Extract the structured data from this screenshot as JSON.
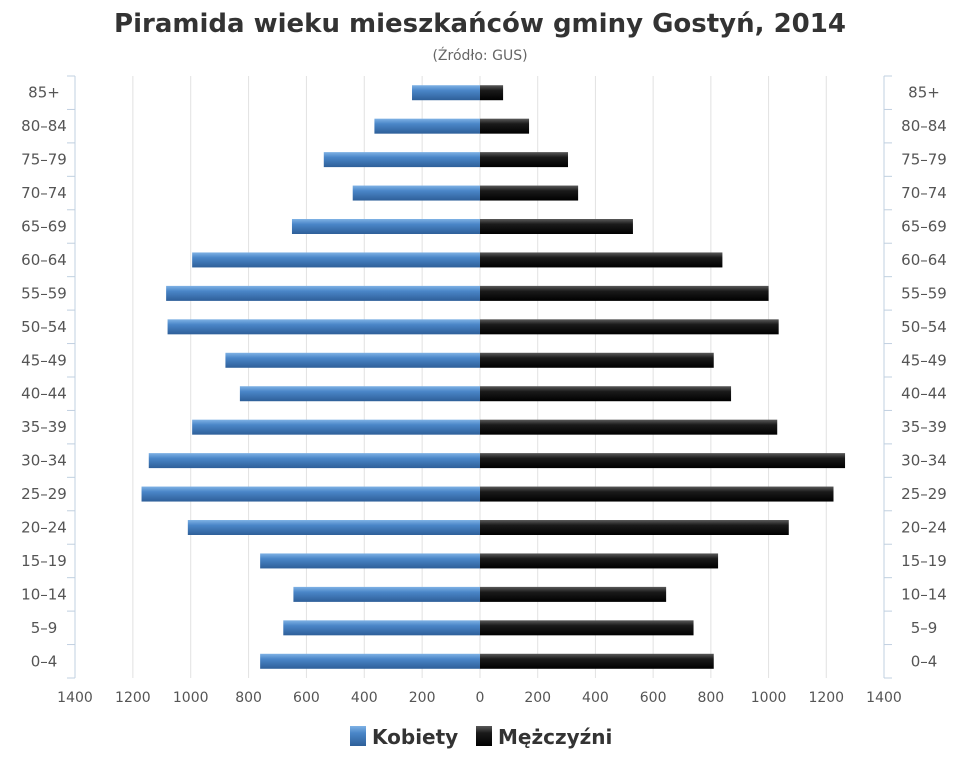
{
  "chart_data": {
    "type": "bar",
    "orientation": "horizontal-population-pyramid",
    "title": "Piramida wieku mieszkańców gminy Gostyń, 2014",
    "subtitle": "(Źródło: GUS)",
    "categories": [
      "0-4",
      "5-9",
      "10-14",
      "15-19",
      "20-24",
      "25-29",
      "30-34",
      "35-39",
      "40-44",
      "45-49",
      "50-54",
      "55-59",
      "60-64",
      "65-69",
      "70-74",
      "75-79",
      "80-84",
      "85+"
    ],
    "series": [
      {
        "name": "Kobiety",
        "color": "#4a86c8",
        "side": "left",
        "values": [
          760,
          680,
          645,
          760,
          1010,
          1170,
          1145,
          995,
          830,
          880,
          1080,
          1085,
          995,
          650,
          440,
          540,
          365,
          235
        ]
      },
      {
        "name": "Mężczyźni",
        "color": "#1a1a1a",
        "side": "right",
        "values": [
          810,
          740,
          645,
          825,
          1070,
          1225,
          1265,
          1030,
          870,
          810,
          1035,
          1000,
          840,
          530,
          340,
          305,
          170,
          80
        ]
      }
    ],
    "x_ticks": [
      "1400",
      "1200",
      "1000",
      "800",
      "600",
      "400",
      "200",
      "0",
      "200",
      "400",
      "600",
      "800",
      "1000",
      "1200",
      "1400"
    ],
    "xlim": [
      -1400,
      1400
    ],
    "grid": true,
    "legend_position": "bottom-center"
  }
}
